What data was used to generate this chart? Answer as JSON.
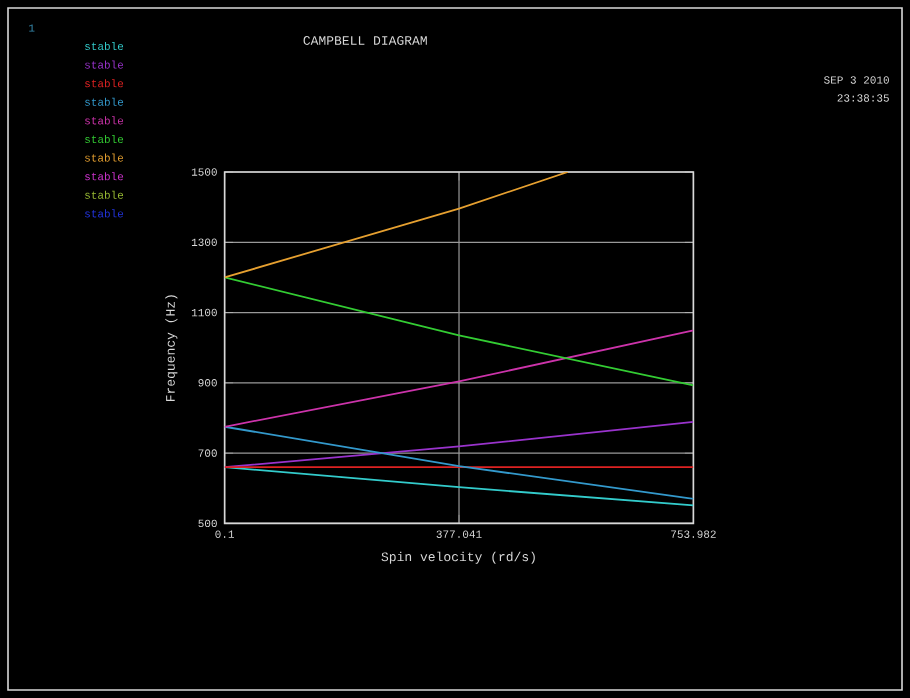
{
  "chart_data": {
    "type": "line",
    "title": "CAMPBELL DIAGRAM",
    "xlabel": "Spin velocity (rd/s)",
    "ylabel": "Frequency (Hz)",
    "annotations": [
      "1",
      "SEP  3 2010",
      "23:38:35"
    ],
    "xlim": [
      0.1,
      753.982
    ],
    "ylim": [
      500,
      1500
    ],
    "xticks": [
      0.1,
      377.041,
      753.982
    ],
    "yticks": [
      500,
      700,
      900,
      1100,
      1300,
      1500
    ],
    "grid": true,
    "legend": "top left",
    "marker": "none",
    "line_style": "solid",
    "series": [
      {
        "name": "stable",
        "color": "#33cccc",
        "x": [
          0.1,
          377.041,
          753.982
        ],
        "values": [
          660,
          603,
          551
        ]
      },
      {
        "name": "stable",
        "color": "#9933cc",
        "x": [
          0.1,
          377.041,
          753.982
        ],
        "values": [
          660,
          719,
          789
        ]
      },
      {
        "name": "stable",
        "color": "#dd2222",
        "x": [
          0.1,
          377.041,
          753.982
        ],
        "values": [
          660,
          660,
          660
        ]
      },
      {
        "name": "stable",
        "color": "#3399cc",
        "x": [
          0.1,
          377.041,
          753.982
        ],
        "values": [
          775,
          663,
          570
        ]
      },
      {
        "name": "stable",
        "color": "#cc33aa",
        "x": [
          0.1,
          377.041,
          753.982
        ],
        "values": [
          775,
          904,
          1049
        ]
      },
      {
        "name": "stable",
        "color": "#33cc33",
        "x": [
          0.1,
          377.041,
          753.982
        ],
        "values": [
          1200,
          1035,
          893
        ]
      },
      {
        "name": "stable",
        "color": "#e6a030",
        "x": [
          0.1,
          377.041,
          552
        ],
        "values": [
          1200,
          1396,
          1500
        ]
      },
      {
        "name": "stable",
        "color": "#cc33cc",
        "values": [
          null,
          null,
          null
        ]
      },
      {
        "name": "stable",
        "color": "#99bb33",
        "values": [
          null,
          null,
          null
        ]
      },
      {
        "name": "stable",
        "color": "#2233dd",
        "values": [
          null,
          null,
          null
        ]
      }
    ]
  }
}
